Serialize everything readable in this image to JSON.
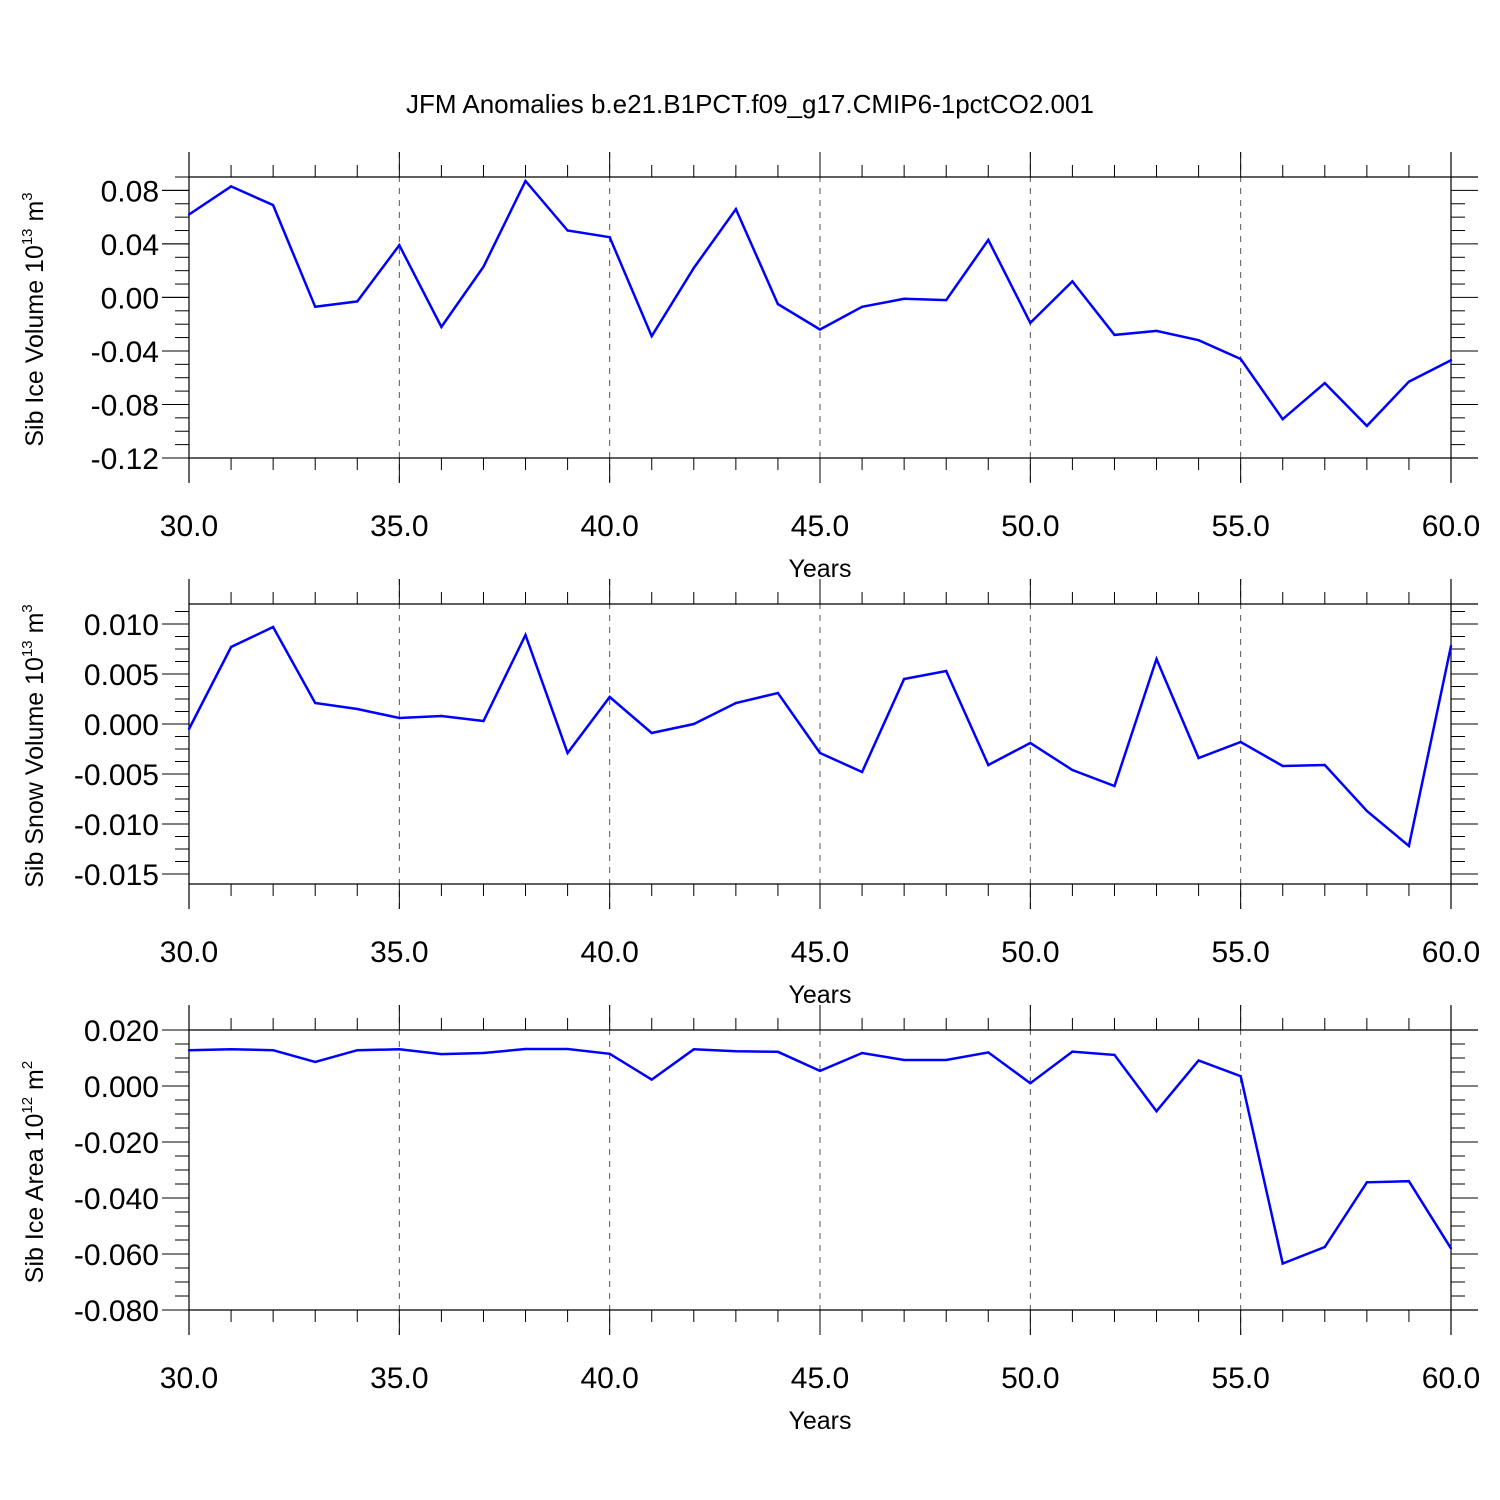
{
  "figure": {
    "title": "JFM Anomalies b.e21.B1PCT.f09_g17.CMIP6-1pctCO2.001"
  },
  "style": {
    "line_color": "#0000ff",
    "axis_color": "#000000",
    "grid_color": "#555555"
  },
  "chart_data": [
    {
      "type": "line",
      "title": "",
      "xlabel": "Years",
      "ylabel_main": "Sib Ice Volume 10",
      "ylabel_exp": "13",
      "ylabel_unit": " m",
      "ylabel_unit_exp": "3",
      "xlim": [
        30,
        60
      ],
      "ylim": [
        -0.12,
        0.09
      ],
      "xticks": [
        "30.0",
        "35.0",
        "40.0",
        "45.0",
        "50.0",
        "55.0",
        "60.0"
      ],
      "xtick_values": [
        30,
        35,
        40,
        45,
        50,
        55,
        60
      ],
      "yticks": [
        "0.08",
        "0.04",
        "0.00",
        "-0.04",
        "-0.08",
        "-0.12"
      ],
      "ytick_values": [
        0.08,
        0.04,
        0.0,
        -0.04,
        -0.08,
        -0.12
      ],
      "grid": "vertical dashed at major x ticks",
      "series": [
        {
          "x": [
            30,
            31,
            32,
            33,
            34,
            35,
            36,
            37,
            38,
            39,
            40,
            41,
            42,
            43,
            44,
            45,
            46,
            47,
            48,
            49,
            50,
            51,
            52,
            53,
            54,
            55,
            56,
            57,
            58,
            59,
            60
          ],
          "values": [
            0.062,
            0.083,
            0.069,
            -0.007,
            -0.003,
            0.039,
            -0.022,
            0.023,
            0.087,
            0.05,
            0.045,
            -0.029,
            0.022,
            0.066,
            -0.005,
            -0.024,
            -0.007,
            -0.001,
            -0.002,
            0.043,
            -0.019,
            0.012,
            -0.028,
            -0.025,
            -0.032,
            -0.046,
            -0.091,
            -0.064,
            -0.096,
            -0.063,
            -0.047
          ]
        }
      ]
    },
    {
      "type": "line",
      "title": "",
      "xlabel": "Years",
      "ylabel_main": "Sib Snow Volume 10",
      "ylabel_exp": "13",
      "ylabel_unit": " m",
      "ylabel_unit_exp": "3",
      "xlim": [
        30,
        60
      ],
      "ylim": [
        -0.016,
        0.012
      ],
      "xticks": [
        "30.0",
        "35.0",
        "40.0",
        "45.0",
        "50.0",
        "55.0",
        "60.0"
      ],
      "xtick_values": [
        30,
        35,
        40,
        45,
        50,
        55,
        60
      ],
      "yticks": [
        "0.010",
        "0.005",
        "0.000",
        "-0.005",
        "-0.010",
        "-0.015"
      ],
      "ytick_values": [
        0.01,
        0.005,
        0.0,
        -0.005,
        -0.01,
        -0.015
      ],
      "grid": "vertical dashed at major x ticks",
      "series": [
        {
          "x": [
            30,
            31,
            32,
            33,
            34,
            35,
            36,
            37,
            38,
            39,
            40,
            41,
            42,
            43,
            44,
            45,
            46,
            47,
            48,
            49,
            50,
            51,
            52,
            53,
            54,
            55,
            56,
            57,
            58,
            59,
            60
          ],
          "values": [
            -0.0005,
            0.0077,
            0.0097,
            0.0021,
            0.0015,
            0.0006,
            0.0008,
            0.0003,
            0.0089,
            -0.0029,
            0.0027,
            -0.0009,
            0.0,
            0.0021,
            0.0031,
            -0.0029,
            -0.0048,
            0.0045,
            0.0053,
            -0.0041,
            -0.0019,
            -0.0046,
            -0.0062,
            0.0065,
            -0.0034,
            -0.0018,
            -0.0042,
            -0.0041,
            -0.0087,
            -0.0122,
            0.0078
          ]
        }
      ]
    },
    {
      "type": "line",
      "title": "",
      "xlabel": "Years",
      "ylabel_main": "Sib Ice Area 10",
      "ylabel_exp": "12",
      "ylabel_unit": " m",
      "ylabel_unit_exp": "2",
      "xlim": [
        30,
        60
      ],
      "ylim": [
        -0.08,
        0.02
      ],
      "xticks": [
        "30.0",
        "35.0",
        "40.0",
        "45.0",
        "50.0",
        "55.0",
        "60.0"
      ],
      "xtick_values": [
        30,
        35,
        40,
        45,
        50,
        55,
        60
      ],
      "yticks": [
        "0.020",
        "0.000",
        "-0.020",
        "-0.040",
        "-0.060",
        "-0.080"
      ],
      "ytick_values": [
        0.02,
        0.0,
        -0.02,
        -0.04,
        -0.06,
        -0.08
      ],
      "grid": "vertical dashed at major x ticks",
      "series": [
        {
          "x": [
            30,
            31,
            32,
            33,
            34,
            35,
            36,
            37,
            38,
            39,
            40,
            41,
            42,
            43,
            44,
            45,
            46,
            47,
            48,
            49,
            50,
            51,
            52,
            53,
            54,
            55,
            56,
            57,
            58,
            59,
            60
          ],
          "values": [
            0.0128,
            0.0131,
            0.0128,
            0.0086,
            0.0128,
            0.0131,
            0.0114,
            0.0118,
            0.0132,
            0.0132,
            0.0115,
            0.0023,
            0.0131,
            0.0124,
            0.0122,
            0.0054,
            0.0118,
            0.0093,
            0.0093,
            0.012,
            0.001,
            0.0123,
            0.0111,
            -0.009,
            0.0091,
            0.0035,
            -0.0634,
            -0.0575,
            -0.0344,
            -0.034,
            -0.058
          ]
        }
      ]
    }
  ]
}
